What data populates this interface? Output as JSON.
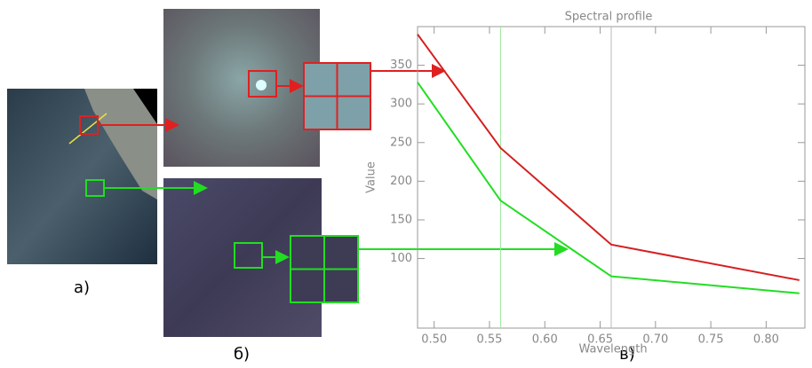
{
  "panel_labels": [
    "а)",
    "б)",
    "в)"
  ],
  "chart_data": {
    "type": "line",
    "title": "Spectral profile",
    "x_label": "Wavelength",
    "y_label": "Value",
    "x": [
      0.485,
      0.56,
      0.66,
      0.83
    ],
    "series": [
      {
        "color": "#d42020",
        "values": [
          390,
          243,
          118,
          72
        ]
      },
      {
        "color": "#22dd22",
        "values": [
          328,
          175,
          77,
          55
        ]
      }
    ],
    "xlim": [
      0.485,
      0.835
    ],
    "ylim": [
      10,
      400
    ],
    "xticks": [
      {
        "value": 0.5,
        "label": "0.50"
      },
      0.55,
      {
        "value": 0.6,
        "label": "0.60"
      },
      0.65,
      {
        "value": 0.7,
        "label": "0.70"
      },
      0.75,
      {
        "value": 0.8,
        "label": "0.80"
      }
    ],
    "yticks": [
      100,
      150,
      200,
      250,
      300,
      350
    ],
    "band_lines": [
      {
        "x": 0.56,
        "color": "#9be89b"
      },
      {
        "x": 0.66,
        "color": "#bbbbbb"
      }
    ]
  }
}
